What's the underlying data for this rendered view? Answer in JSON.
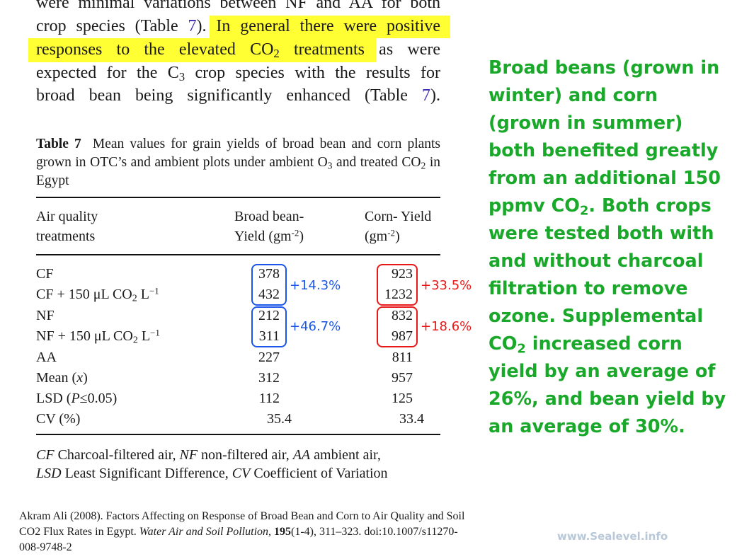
{
  "paragraph": {
    "line1": "were minimal variations between NF and AA for both",
    "line2_pre": "crop species (Table ",
    "line2_ref": "7",
    "line2_mid": ").",
    "line2_hl": " In general there were positive",
    "line3_hl_a": "responses to the elevated CO",
    "line3_hl_sub": "2",
    "line3_hl_b": " treatments",
    "line3_post": " as were",
    "line4_a": "expected for the C",
    "line4_sub": "3",
    "line4_b": " crop species with the results for",
    "line5_a": "broad bean being significantly enhanced (Table ",
    "line5_ref": "7",
    "line5_b": ")."
  },
  "table": {
    "caption_label": "Table 7",
    "caption_a": "Mean values for grain yields of broad bean and corn plants grown in OTC’s and ambient plots under ambient O",
    "caption_sub1": "3",
    "caption_b": " and treated CO",
    "caption_sub2": "2",
    "caption_c": " in Egypt",
    "headers": {
      "col1_l1": "Air quality",
      "col1_l2": "treatments",
      "col2_l1": "Broad bean-",
      "col2_l2": "Yield (gm",
      "col2_sup": "-2",
      "col2_end": ")",
      "col3_l1": "Corn- Yield",
      "col3_l2": "(gm",
      "col3_sup": "-2",
      "col3_end": ")"
    },
    "rows": [
      {
        "label": "CF",
        "bean": "378",
        "corn": "923"
      },
      {
        "label": "CF + 150 μL CO",
        "sub": "2",
        "label_end": " L",
        "sup": "−1",
        "bean": "432",
        "corn": "1232"
      },
      {
        "label": "NF",
        "bean": "212",
        "corn": "832"
      },
      {
        "label": "NF + 150 μL CO",
        "sub": "2",
        "label_end": " L",
        "sup": "−1",
        "bean": "311",
        "corn": "987"
      },
      {
        "label": "AA",
        "bean": "227",
        "corn": "811"
      },
      {
        "label": "Mean (",
        "italic": "x",
        "label_end": ")",
        "bean": "312",
        "corn": "957"
      },
      {
        "label": "LSD (",
        "italic": "P",
        "label_end": "≤0.05)",
        "bean": "112",
        "corn": "125"
      },
      {
        "label": "CV (%)",
        "bean": "35.4",
        "corn": "33.4"
      }
    ],
    "annotations": {
      "bean_cf": "+14.3%",
      "bean_nf": "+46.7%",
      "corn_cf": "+33.5%",
      "corn_nf": "+18.6%",
      "bean_color": "#1a56e8",
      "corn_color": "#e81818"
    },
    "footnote": {
      "cf_abbr": "CF",
      "cf_text": " Charcoal-filtered air, ",
      "nf_abbr": "NF",
      "nf_text": " non-filtered air, ",
      "aa_abbr": "AA",
      "aa_text": " ambient air,",
      "lsd_abbr": "LSD",
      "lsd_text": " Least Significant Difference, ",
      "cv_abbr": "CV",
      "cv_text": " Coefficient of Variation"
    }
  },
  "citation": {
    "text_a": "Akram Ali (2008). Factors Affecting on Response of Broad Bean and Corn to Air Quality and Soil CO2 Flux Rates in Egypt. ",
    "journal": "Water Air and Soil Pollution,",
    "volume": " 195",
    "text_b": "(1-4), 311–323. doi:10.1007/s11270-008-9748-2"
  },
  "commentary": {
    "text_a": "Broad beans (grown in winter) and corn (grown in summer) both benefited greatly from an additional 150 ppmv CO",
    "sub1": "2",
    "text_b": ". Both crops were tested both with and without charcoal filtration to remove ozone. Supplemental CO",
    "sub2": "2",
    "text_c": " increased corn yield by an average of 26%, and bean yield by an average of 30%.",
    "color": "#1aa82a"
  },
  "watermark": "www.Sealevel.info"
}
